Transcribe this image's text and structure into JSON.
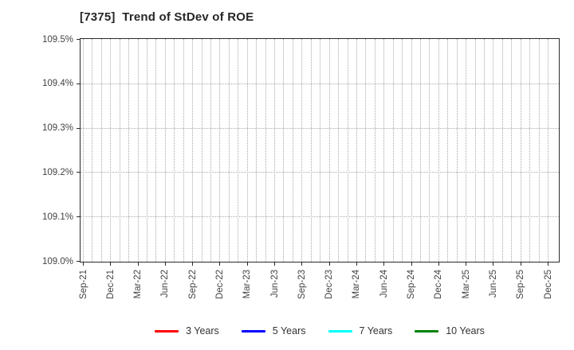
{
  "chart_data": {
    "type": "line",
    "title": "[7375]  Trend of StDev of ROE",
    "xlabel": "",
    "ylabel": "",
    "ylim": [
      109.0,
      109.5
    ],
    "y_tick_step": 0.1,
    "y_tick_labels": [
      "109.0%",
      "109.1%",
      "109.2%",
      "109.3%",
      "109.4%",
      "109.5%"
    ],
    "x_tick_labels": [
      "Sep-21",
      "Dec-21",
      "Mar-22",
      "Jun-22",
      "Sep-22",
      "Dec-22",
      "Mar-23",
      "Jun-23",
      "Sep-23",
      "Dec-23",
      "Mar-24",
      "Jun-24",
      "Sep-24",
      "Dec-24",
      "Mar-25",
      "Jun-25",
      "Sep-25",
      "Dec-25"
    ],
    "x_minor_gridlines_between_ticks": 2,
    "grid": true,
    "legend_position": "bottom",
    "series": [
      {
        "name": "3 Years",
        "color": "#ff0000",
        "values": []
      },
      {
        "name": "5 Years",
        "color": "#0000ff",
        "values": []
      },
      {
        "name": "7 Years",
        "color": "#00ffff",
        "values": []
      },
      {
        "name": "10 Years",
        "color": "#008000",
        "values": []
      }
    ],
    "colors": {
      "frame": "#2b2b2b",
      "grid": "#a9a9a9",
      "tick_text": "#444444",
      "title_text": "#262626",
      "background": "#ffffff"
    }
  }
}
